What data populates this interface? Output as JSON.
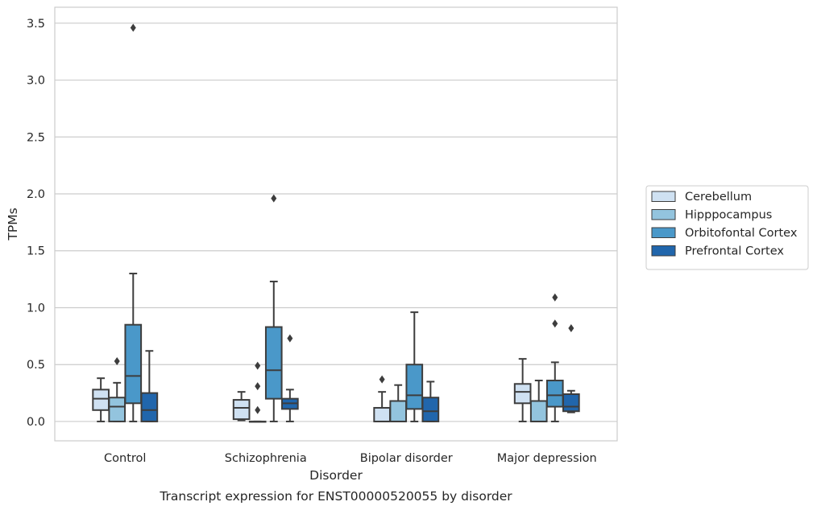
{
  "chart_data": {
    "type": "box",
    "title": "Transcript expression for ENST00000520055 by disorder",
    "xlabel": "Disorder",
    "ylabel": "TPMs",
    "ylim": [
      -0.17,
      3.64
    ],
    "yticks": [
      0.0,
      0.5,
      1.0,
      1.5,
      2.0,
      2.5,
      3.0,
      3.5
    ],
    "ytick_labels": [
      "0.0",
      "0.5",
      "1.0",
      "1.5",
      "2.0",
      "2.5",
      "3.0",
      "3.5"
    ],
    "grid": "horizontal",
    "legend_position": "right",
    "categories": [
      "Control",
      "Schizophrenia",
      "Bipolar disorder",
      "Major depression"
    ],
    "series": [
      {
        "name": "Cerebellum",
        "color": "#cfe1f2",
        "boxes": [
          {
            "whislo": 0.0,
            "q1": 0.1,
            "med": 0.2,
            "q3": 0.28,
            "whishi": 0.38,
            "fliers": []
          },
          {
            "whislo": 0.01,
            "q1": 0.02,
            "med": 0.12,
            "q3": 0.19,
            "whishi": 0.26,
            "fliers": []
          },
          {
            "whislo": 0.0,
            "q1": 0.0,
            "med": 0.0,
            "q3": 0.12,
            "whishi": 0.26,
            "fliers": [
              0.37
            ]
          },
          {
            "whislo": 0.0,
            "q1": 0.16,
            "med": 0.26,
            "q3": 0.33,
            "whishi": 0.55,
            "fliers": []
          }
        ]
      },
      {
        "name": "Hipppocampus",
        "color": "#93c4de",
        "boxes": [
          {
            "whislo": 0.0,
            "q1": 0.0,
            "med": 0.13,
            "q3": 0.21,
            "whishi": 0.34,
            "fliers": [
              0.53
            ]
          },
          {
            "whislo": 0.0,
            "q1": 0.0,
            "med": 0.0,
            "q3": 0.0,
            "whishi": 0.0,
            "fliers": [
              0.1,
              0.31,
              0.49
            ]
          },
          {
            "whislo": 0.0,
            "q1": 0.0,
            "med": 0.0,
            "q3": 0.18,
            "whishi": 0.32,
            "fliers": []
          },
          {
            "whislo": 0.0,
            "q1": 0.0,
            "med": 0.0,
            "q3": 0.18,
            "whishi": 0.36,
            "fliers": []
          }
        ]
      },
      {
        "name": "Orbitofontal Cortex",
        "color": "#4a98c9",
        "boxes": [
          {
            "whislo": 0.0,
            "q1": 0.16,
            "med": 0.4,
            "q3": 0.85,
            "whishi": 1.3,
            "fliers": [
              3.46
            ]
          },
          {
            "whislo": 0.0,
            "q1": 0.2,
            "med": 0.45,
            "q3": 0.83,
            "whishi": 1.23,
            "fliers": [
              1.96
            ]
          },
          {
            "whislo": 0.0,
            "q1": 0.11,
            "med": 0.23,
            "q3": 0.5,
            "whishi": 0.96,
            "fliers": []
          },
          {
            "whislo": 0.0,
            "q1": 0.13,
            "med": 0.23,
            "q3": 0.36,
            "whishi": 0.52,
            "fliers": [
              0.86,
              1.09
            ]
          }
        ]
      },
      {
        "name": "Prefrontal Cortex",
        "color": "#2166ac",
        "boxes": [
          {
            "whislo": 0.0,
            "q1": 0.0,
            "med": 0.1,
            "q3": 0.25,
            "whishi": 0.62,
            "fliers": []
          },
          {
            "whislo": 0.0,
            "q1": 0.11,
            "med": 0.16,
            "q3": 0.2,
            "whishi": 0.28,
            "fliers": [
              0.73
            ]
          },
          {
            "whislo": 0.0,
            "q1": 0.0,
            "med": 0.09,
            "q3": 0.21,
            "whishi": 0.35,
            "fliers": []
          },
          {
            "whislo": 0.08,
            "q1": 0.09,
            "med": 0.13,
            "q3": 0.24,
            "whishi": 0.27,
            "fliers": [
              0.82
            ]
          }
        ]
      }
    ]
  }
}
